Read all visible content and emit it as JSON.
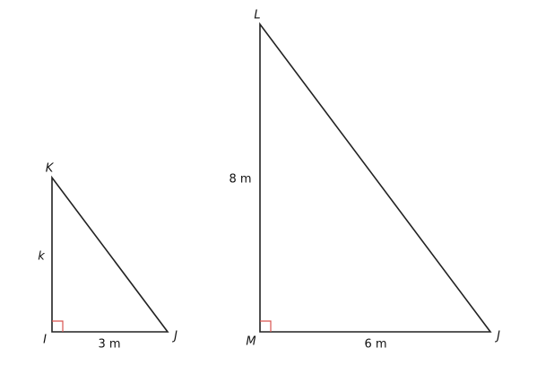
{
  "triangles": [
    {
      "vertices": [
        "K",
        "I",
        "J"
      ],
      "sides": [
        "k",
        "3 m"
      ]
    },
    {
      "vertices": [
        "L",
        "M",
        "J"
      ],
      "sides": [
        "8 m",
        "6 m"
      ]
    }
  ]
}
